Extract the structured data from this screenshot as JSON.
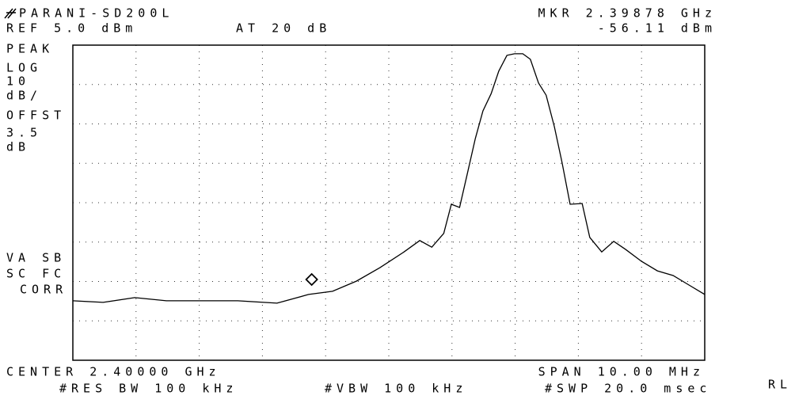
{
  "chart_data": {
    "type": "line",
    "title": "PARANI-SD200L",
    "annotations": [
      "REF 5.0 dBm",
      "AT 20 dB",
      "PEAK",
      "LOG",
      "10",
      "dB/",
      "OFFST",
      "3.5",
      "dB",
      "VA SB",
      "SC FC",
      "CORR",
      "CENTER 2.40000 GHz",
      "SPAN 10.00 MHz",
      "#RES BW 100 kHz",
      "#VBW 100 kHz",
      "#SWP 20.0 msec",
      "RL"
    ],
    "marker": {
      "label": "MKR 2.39878 GHz",
      "value_label": "-56.11 dBm",
      "x": 2.39878,
      "y": -56.11
    },
    "xlim": [
      2.395,
      2.405
    ],
    "ylim": [
      -75,
      5
    ],
    "xticks": [
      2.395,
      2.396,
      2.397,
      2.398,
      2.399,
      2.4,
      2.401,
      2.402,
      2.403,
      2.404,
      2.405
    ],
    "yticks": [
      -75,
      -65,
      -55,
      -45,
      -35,
      -25,
      -15,
      -5,
      5
    ],
    "grid": true,
    "series": [
      {
        "color": "#000000",
        "x": [
          2.395,
          2.39548,
          2.39598,
          2.39648,
          2.39698,
          2.39761,
          2.39823,
          2.39873,
          2.39911,
          2.39949,
          2.39986,
          2.40024,
          2.40049,
          2.40068,
          2.40087,
          2.40099,
          2.40112,
          2.40124,
          2.40137,
          2.40149,
          2.40162,
          2.40174,
          2.40187,
          2.40199,
          2.40212,
          2.40224,
          2.40237,
          2.40249,
          2.40262,
          2.40274,
          2.40287,
          2.40306,
          2.40318,
          2.40337,
          2.40356,
          2.40375,
          2.404,
          2.40425,
          2.4045,
          2.40475,
          2.405
        ],
        "values": [
          -59.9,
          -60.3,
          -59.1,
          -59.9,
          -59.9,
          -59.9,
          -60.5,
          -58.3,
          -57.5,
          -54.9,
          -51.5,
          -47.5,
          -44.6,
          -46.3,
          -42.8,
          -35.4,
          -36.2,
          -27.8,
          -18.7,
          -11.7,
          -7.3,
          -1.6,
          2.4,
          2.8,
          2.8,
          1.4,
          -4.6,
          -7.7,
          -15.7,
          -24.7,
          -35.4,
          -35.2,
          -43.8,
          -47.5,
          -44.8,
          -46.9,
          -49.9,
          -52.3,
          -53.5,
          -55.9,
          -58.3
        ]
      }
    ]
  }
}
